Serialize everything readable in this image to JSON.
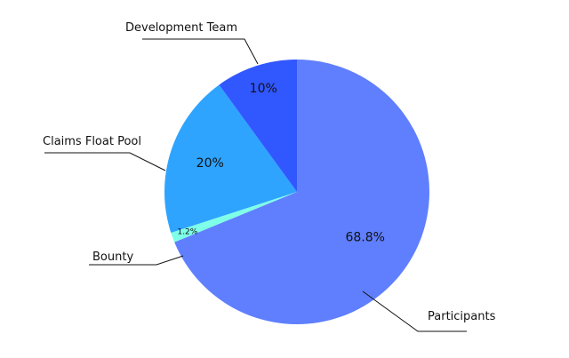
{
  "chart_data": {
    "type": "pie",
    "start_angle_deg": 0,
    "direction": "clockwise",
    "slices": [
      {
        "label": "Participants",
        "value": 68.8,
        "value_label": "68.8%",
        "color": "#5F7FFE"
      },
      {
        "label": "Bounty",
        "value": 1.2,
        "value_label": "1.2%",
        "color": "#7FFFE8"
      },
      {
        "label": "Claims Float Pool",
        "value": 20,
        "value_label": "20%",
        "color": "#2EA4FF"
      },
      {
        "label": "Development Team",
        "value": 10,
        "value_label": "10%",
        "color": "#3157FF"
      }
    ]
  }
}
